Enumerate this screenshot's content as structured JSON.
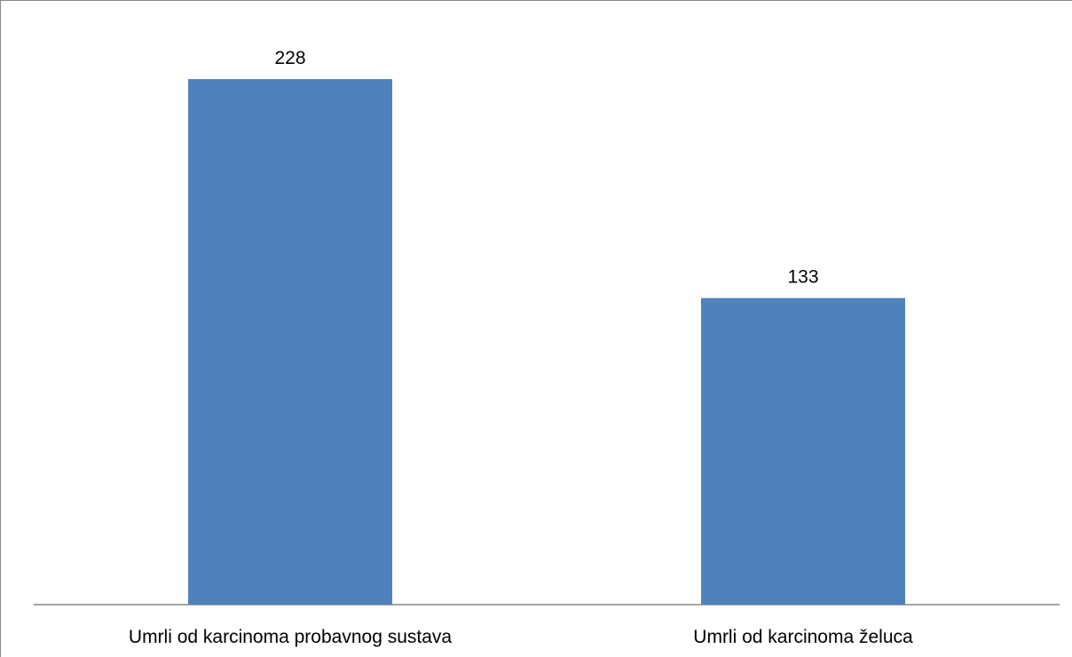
{
  "chart_data": {
    "type": "bar",
    "categories": [
      "Umrli od karcinoma probavnog sustava",
      "Umrli od karcinoma želuca"
    ],
    "values": [
      228,
      133
    ],
    "data_labels": [
      "228",
      "133"
    ],
    "title": "",
    "xlabel": "",
    "ylabel": "",
    "ylim": [
      0,
      260
    ],
    "grid": false,
    "legend": "none",
    "bar_color": "#4F81BD",
    "axis_color": "#868686"
  }
}
